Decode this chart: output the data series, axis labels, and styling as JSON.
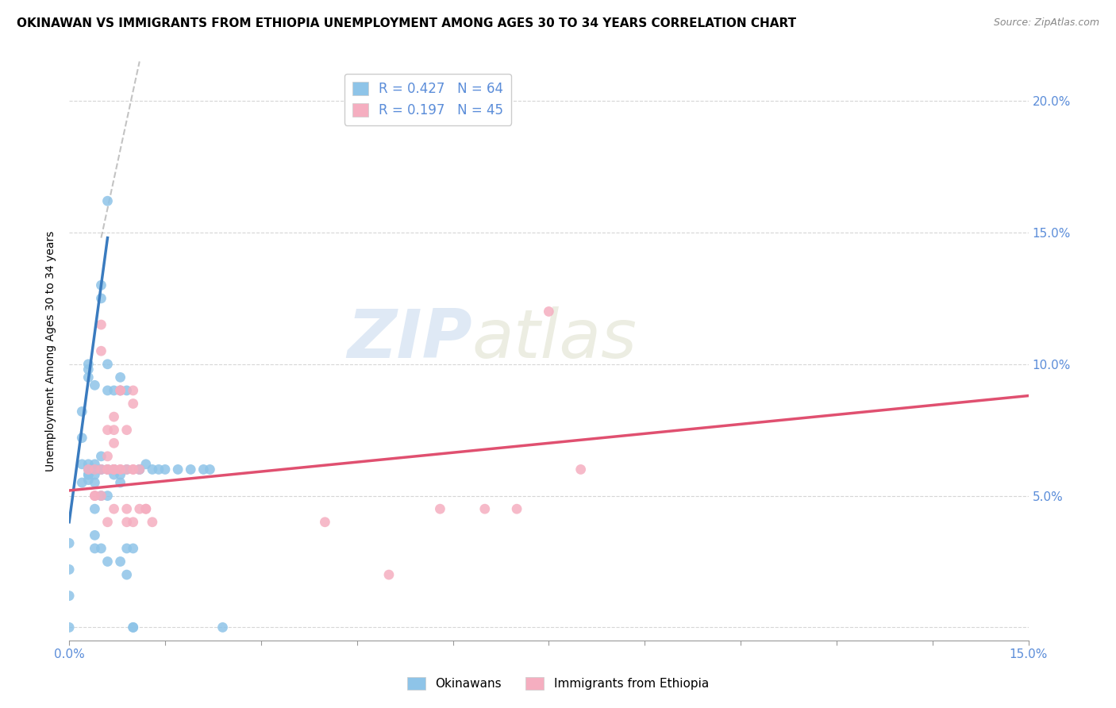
{
  "title": "OKINAWAN VS IMMIGRANTS FROM ETHIOPIA UNEMPLOYMENT AMONG AGES 30 TO 34 YEARS CORRELATION CHART",
  "source": "Source: ZipAtlas.com",
  "ylabel": "Unemployment Among Ages 30 to 34 years",
  "right_yticks": [
    "20.0%",
    "15.0%",
    "10.0%",
    "5.0%"
  ],
  "right_ytick_vals": [
    0.2,
    0.15,
    0.1,
    0.05
  ],
  "xmin": 0.0,
  "xmax": 0.15,
  "ymin": -0.005,
  "ymax": 0.215,
  "okinawan_color": "#8ec4e8",
  "ethiopia_color": "#f5aec0",
  "okinawan_line_color": "#3a7bbf",
  "ethiopia_line_color": "#e05070",
  "legend_R1": "R = 0.427",
  "legend_N1": "N = 64",
  "legend_R2": "R = 0.197",
  "legend_N2": "N = 45",
  "legend_label1": "Okinawans",
  "legend_label2": "Immigrants from Ethiopia",
  "watermark_zip": "ZIP",
  "watermark_atlas": "atlas",
  "axis_label_color": "#5b8dd9",
  "title_fontsize": 11,
  "axis_tick_fontsize": 11,
  "ylabel_fontsize": 10,
  "okinawan_scatter": [
    [
      0.0,
      0.012
    ],
    [
      0.0,
      0.022
    ],
    [
      0.0,
      0.032
    ],
    [
      0.0,
      0.0
    ],
    [
      0.002,
      0.062
    ],
    [
      0.002,
      0.072
    ],
    [
      0.002,
      0.082
    ],
    [
      0.002,
      0.055
    ],
    [
      0.003,
      0.058
    ],
    [
      0.003,
      0.1
    ],
    [
      0.003,
      0.098
    ],
    [
      0.003,
      0.095
    ],
    [
      0.003,
      0.062
    ],
    [
      0.003,
      0.058
    ],
    [
      0.003,
      0.056
    ],
    [
      0.003,
      0.06
    ],
    [
      0.004,
      0.062
    ],
    [
      0.004,
      0.055
    ],
    [
      0.004,
      0.045
    ],
    [
      0.004,
      0.06
    ],
    [
      0.004,
      0.058
    ],
    [
      0.004,
      0.035
    ],
    [
      0.004,
      0.03
    ],
    [
      0.004,
      0.092
    ],
    [
      0.005,
      0.065
    ],
    [
      0.005,
      0.06
    ],
    [
      0.005,
      0.125
    ],
    [
      0.005,
      0.13
    ],
    [
      0.005,
      0.03
    ],
    [
      0.005,
      0.06
    ],
    [
      0.005,
      0.05
    ],
    [
      0.006,
      0.1
    ],
    [
      0.006,
      0.09
    ],
    [
      0.006,
      0.06
    ],
    [
      0.006,
      0.05
    ],
    [
      0.006,
      0.025
    ],
    [
      0.006,
      0.162
    ],
    [
      0.007,
      0.06
    ],
    [
      0.007,
      0.058
    ],
    [
      0.007,
      0.06
    ],
    [
      0.007,
      0.09
    ],
    [
      0.008,
      0.095
    ],
    [
      0.008,
      0.09
    ],
    [
      0.008,
      0.055
    ],
    [
      0.008,
      0.058
    ],
    [
      0.008,
      0.025
    ],
    [
      0.009,
      0.03
    ],
    [
      0.009,
      0.02
    ],
    [
      0.009,
      0.06
    ],
    [
      0.009,
      0.09
    ],
    [
      0.01,
      0.03
    ],
    [
      0.01,
      0.0
    ],
    [
      0.01,
      0.0
    ],
    [
      0.011,
      0.06
    ],
    [
      0.011,
      0.06
    ],
    [
      0.012,
      0.062
    ],
    [
      0.013,
      0.06
    ],
    [
      0.014,
      0.06
    ],
    [
      0.015,
      0.06
    ],
    [
      0.017,
      0.06
    ],
    [
      0.019,
      0.06
    ],
    [
      0.021,
      0.06
    ],
    [
      0.022,
      0.06
    ],
    [
      0.024,
      0.0
    ]
  ],
  "ethiopia_scatter": [
    [
      0.003,
      0.06
    ],
    [
      0.004,
      0.06
    ],
    [
      0.004,
      0.05
    ],
    [
      0.004,
      0.05
    ],
    [
      0.005,
      0.06
    ],
    [
      0.005,
      0.05
    ],
    [
      0.005,
      0.115
    ],
    [
      0.005,
      0.105
    ],
    [
      0.006,
      0.06
    ],
    [
      0.006,
      0.06
    ],
    [
      0.006,
      0.04
    ],
    [
      0.006,
      0.075
    ],
    [
      0.006,
      0.065
    ],
    [
      0.007,
      0.08
    ],
    [
      0.007,
      0.075
    ],
    [
      0.007,
      0.07
    ],
    [
      0.007,
      0.045
    ],
    [
      0.007,
      0.06
    ],
    [
      0.007,
      0.06
    ],
    [
      0.007,
      0.06
    ],
    [
      0.008,
      0.09
    ],
    [
      0.008,
      0.09
    ],
    [
      0.008,
      0.06
    ],
    [
      0.008,
      0.06
    ],
    [
      0.009,
      0.075
    ],
    [
      0.009,
      0.06
    ],
    [
      0.009,
      0.045
    ],
    [
      0.009,
      0.04
    ],
    [
      0.01,
      0.085
    ],
    [
      0.01,
      0.09
    ],
    [
      0.01,
      0.06
    ],
    [
      0.01,
      0.06
    ],
    [
      0.01,
      0.04
    ],
    [
      0.011,
      0.06
    ],
    [
      0.011,
      0.045
    ],
    [
      0.012,
      0.045
    ],
    [
      0.012,
      0.045
    ],
    [
      0.013,
      0.04
    ],
    [
      0.04,
      0.04
    ],
    [
      0.05,
      0.02
    ],
    [
      0.058,
      0.045
    ],
    [
      0.065,
      0.045
    ],
    [
      0.07,
      0.045
    ],
    [
      0.075,
      0.12
    ],
    [
      0.08,
      0.06
    ]
  ],
  "okinawan_trendline": [
    [
      0.0,
      0.04
    ],
    [
      0.006,
      0.148
    ]
  ],
  "ethiopia_trendline": [
    [
      0.0,
      0.052
    ],
    [
      0.15,
      0.088
    ]
  ],
  "dashed_line_x": [
    0.005,
    0.011
  ],
  "dashed_line_y": [
    0.148,
    0.215
  ]
}
